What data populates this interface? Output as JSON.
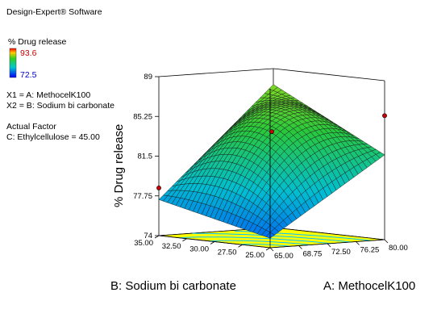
{
  "legend": {
    "software": "Design-Expert® Software",
    "response": "% Drug release",
    "high_value": "93.6",
    "low_value": "72.5",
    "x1": "X1 = A: MethocelK100",
    "x2": "X2 = B: Sodium bi carbonate",
    "actual_factor_title": "Actual Factor",
    "actual_factor": "C: Ethylcellulose = 45.00"
  },
  "colors": {
    "high": "#ff0000",
    "low": "#0000ff",
    "floor": "#ffff00",
    "contour": "#00c0ff",
    "design_point": "#cc0000"
  },
  "chart_data": {
    "type": "surface3d",
    "xlabel": "A: MethocelK100",
    "ylabel": "B: Sodium bi carbonate",
    "zlabel": "% Drug release",
    "a_range": [
      65,
      80
    ],
    "b_range": [
      25,
      35
    ],
    "z_range": [
      74,
      89
    ],
    "a_ticks": [
      "65.00",
      "68.75",
      "72.50",
      "76.25",
      "80.00"
    ],
    "b_ticks": [
      "25.00",
      "27.50",
      "30.00",
      "32.50",
      "35.00"
    ],
    "z_ticks": [
      "74",
      "77.75",
      "81.5",
      "85.25",
      "89"
    ],
    "surface_corners": [
      {
        "a": 65,
        "b": 25,
        "z": 74.9
      },
      {
        "a": 80,
        "b": 25,
        "z": 82.0
      },
      {
        "a": 65,
        "b": 35,
        "z": 77.4
      },
      {
        "a": 80,
        "b": 35,
        "z": 87.5
      }
    ],
    "surface_center_z": 84.5,
    "design_points": [
      {
        "a": 72.5,
        "b": 30,
        "z": 84.0
      },
      {
        "a": 65,
        "b": 35,
        "z": 78.5
      },
      {
        "a": 80,
        "b": 25,
        "z": 85.7
      }
    ],
    "floor_contours": 5,
    "grid": true
  }
}
